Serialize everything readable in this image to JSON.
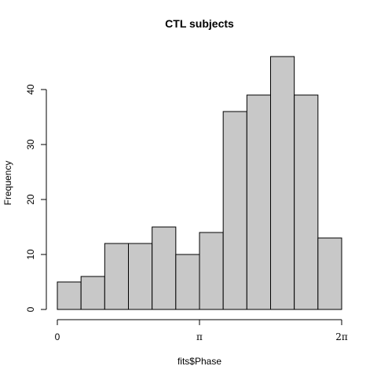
{
  "chart_data": {
    "type": "bar",
    "title": "CTL subjects",
    "xlabel": "fits$Phase",
    "ylabel": "Frequency",
    "bin_edges": [
      0,
      0.5236,
      1.0472,
      1.5708,
      2.0944,
      2.618,
      3.1416,
      3.6652,
      4.1888,
      4.7124,
      5.236,
      5.7596,
      6.2832
    ],
    "values": [
      5,
      6,
      12,
      12,
      15,
      10,
      14,
      36,
      39,
      46,
      39,
      13
    ],
    "xlim": [
      0,
      6.2832
    ],
    "ylim": [
      0,
      46
    ],
    "x_ticks": [
      {
        "value": 0,
        "label": "0"
      },
      {
        "value": 3.1416,
        "label": "π"
      },
      {
        "value": 6.2832,
        "label": "2π"
      }
    ],
    "y_ticks": [
      0,
      10,
      20,
      30,
      40
    ],
    "grid": false,
    "bar_color": "#c8c8c8"
  }
}
